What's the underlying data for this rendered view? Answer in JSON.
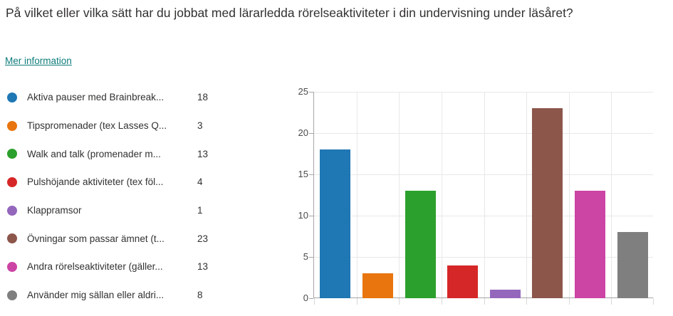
{
  "question": {
    "title": "På vilket eller vilka sätt har du jobbat med lärarledda rörelseaktiviteter i din undervisning under läsåret?",
    "more_info_label": "Mer information",
    "link_color": "#0e7c7b"
  },
  "chart_data": {
    "type": "bar",
    "title": "",
    "xlabel": "",
    "ylabel": "",
    "categories": [
      "Aktiva pauser med Brainbreak...",
      "Tipspromenader (tex Lasses Q...",
      "Walk and talk (promenader m...",
      "Pulshöjande aktiviteter (tex föl...",
      "Klappramsor",
      "Övningar som passar ämnet (t...",
      "Andra rörelseaktiviteter (gäller...",
      "Använder mig sällan eller aldri..."
    ],
    "values": [
      18,
      3,
      13,
      4,
      1,
      23,
      13,
      8
    ],
    "colors": [
      "#1f77b4",
      "#e8750e",
      "#2ca02c",
      "#d62728",
      "#9467bd",
      "#8c564b",
      "#cc44a4",
      "#7f7f7f"
    ],
    "ylim": [
      0,
      25
    ],
    "yticks": [
      0,
      5,
      10,
      15,
      20,
      25
    ],
    "grid": true,
    "legend_position": "left"
  }
}
